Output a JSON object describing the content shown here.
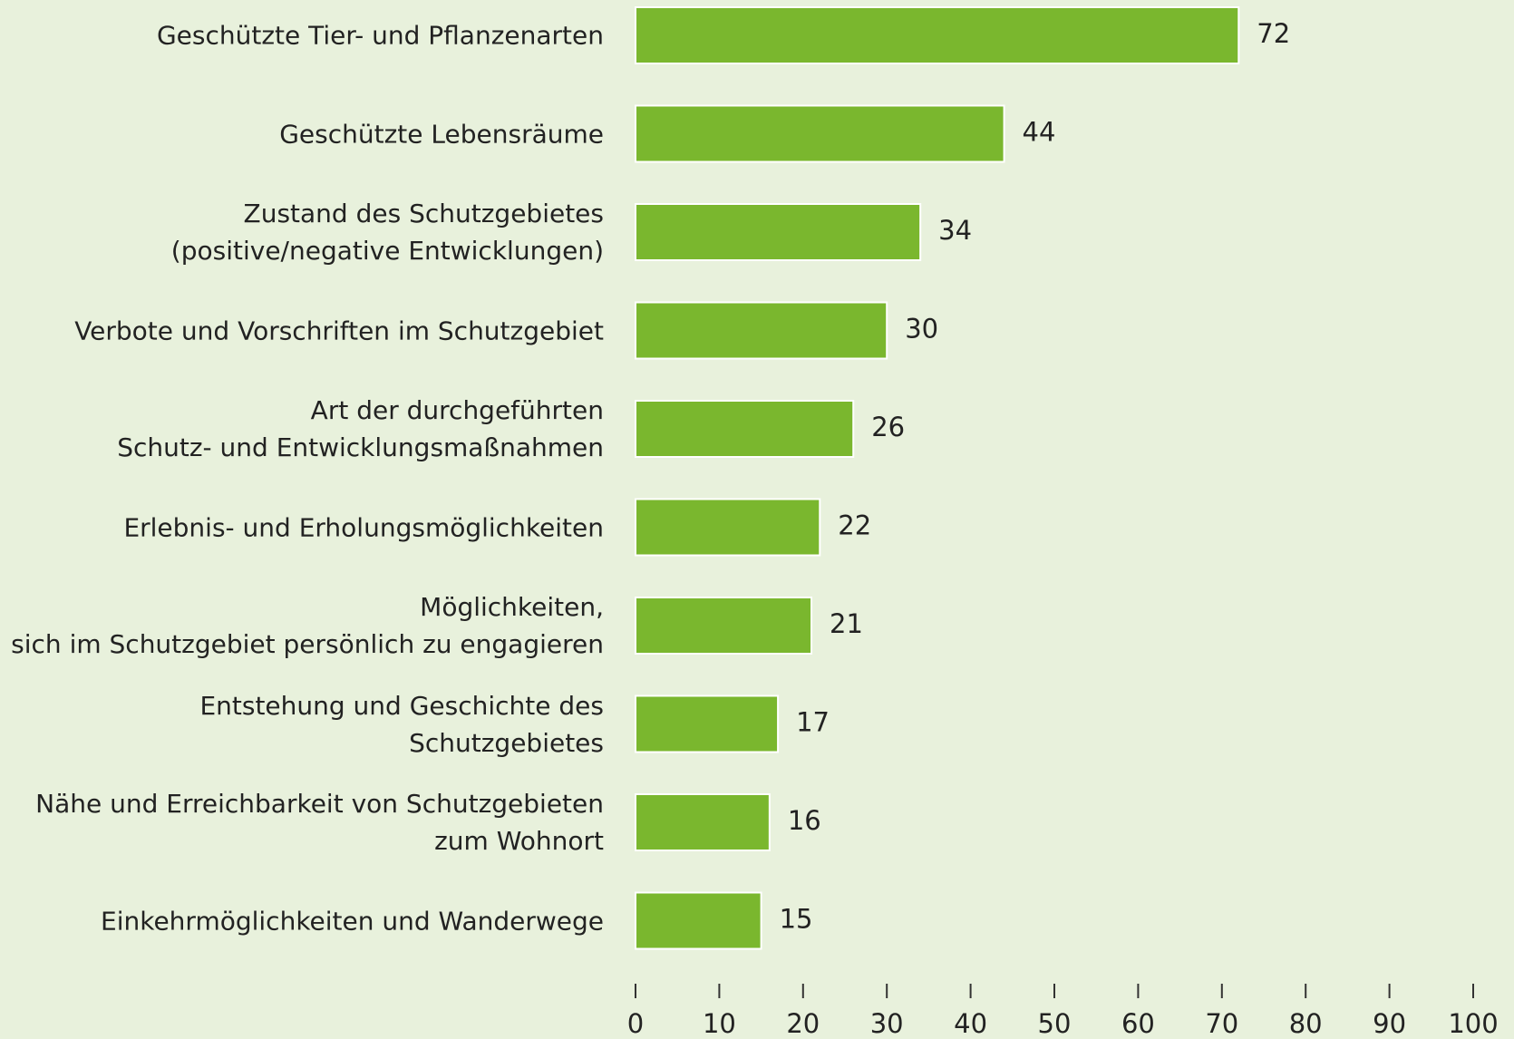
{
  "chart_data": {
    "type": "bar",
    "orientation": "horizontal",
    "categories": [
      "Geschützte Tier- und Pflanzenarten",
      "Geschützte Lebensräume",
      "Zustand des Schutzgebietes\n(positive/negative Entwicklungen)",
      "Verbote und Vorschriften im Schutzgebiet",
      "Art der durchgeführten\nSchutz- und Entwicklungsmaßnahmen",
      "Erlebnis- und Erholungsmöglichkeiten",
      "Möglichkeiten,\nsich im Schutzgebiet persönlich zu engagieren",
      "Entstehung und Geschichte des Schutzgebietes",
      "Nähe und Erreichbarkeit von Schutzgebieten\nzum Wohnort",
      "Einkehrmöglichkeiten und Wanderwege"
    ],
    "values": [
      72,
      44,
      34,
      30,
      26,
      22,
      21,
      17,
      16,
      15
    ],
    "color": "#7ab72e",
    "xlim": [
      0,
      100
    ],
    "xticks": [
      0,
      10,
      20,
      30,
      40,
      50,
      60,
      70,
      80,
      90,
      100
    ]
  }
}
